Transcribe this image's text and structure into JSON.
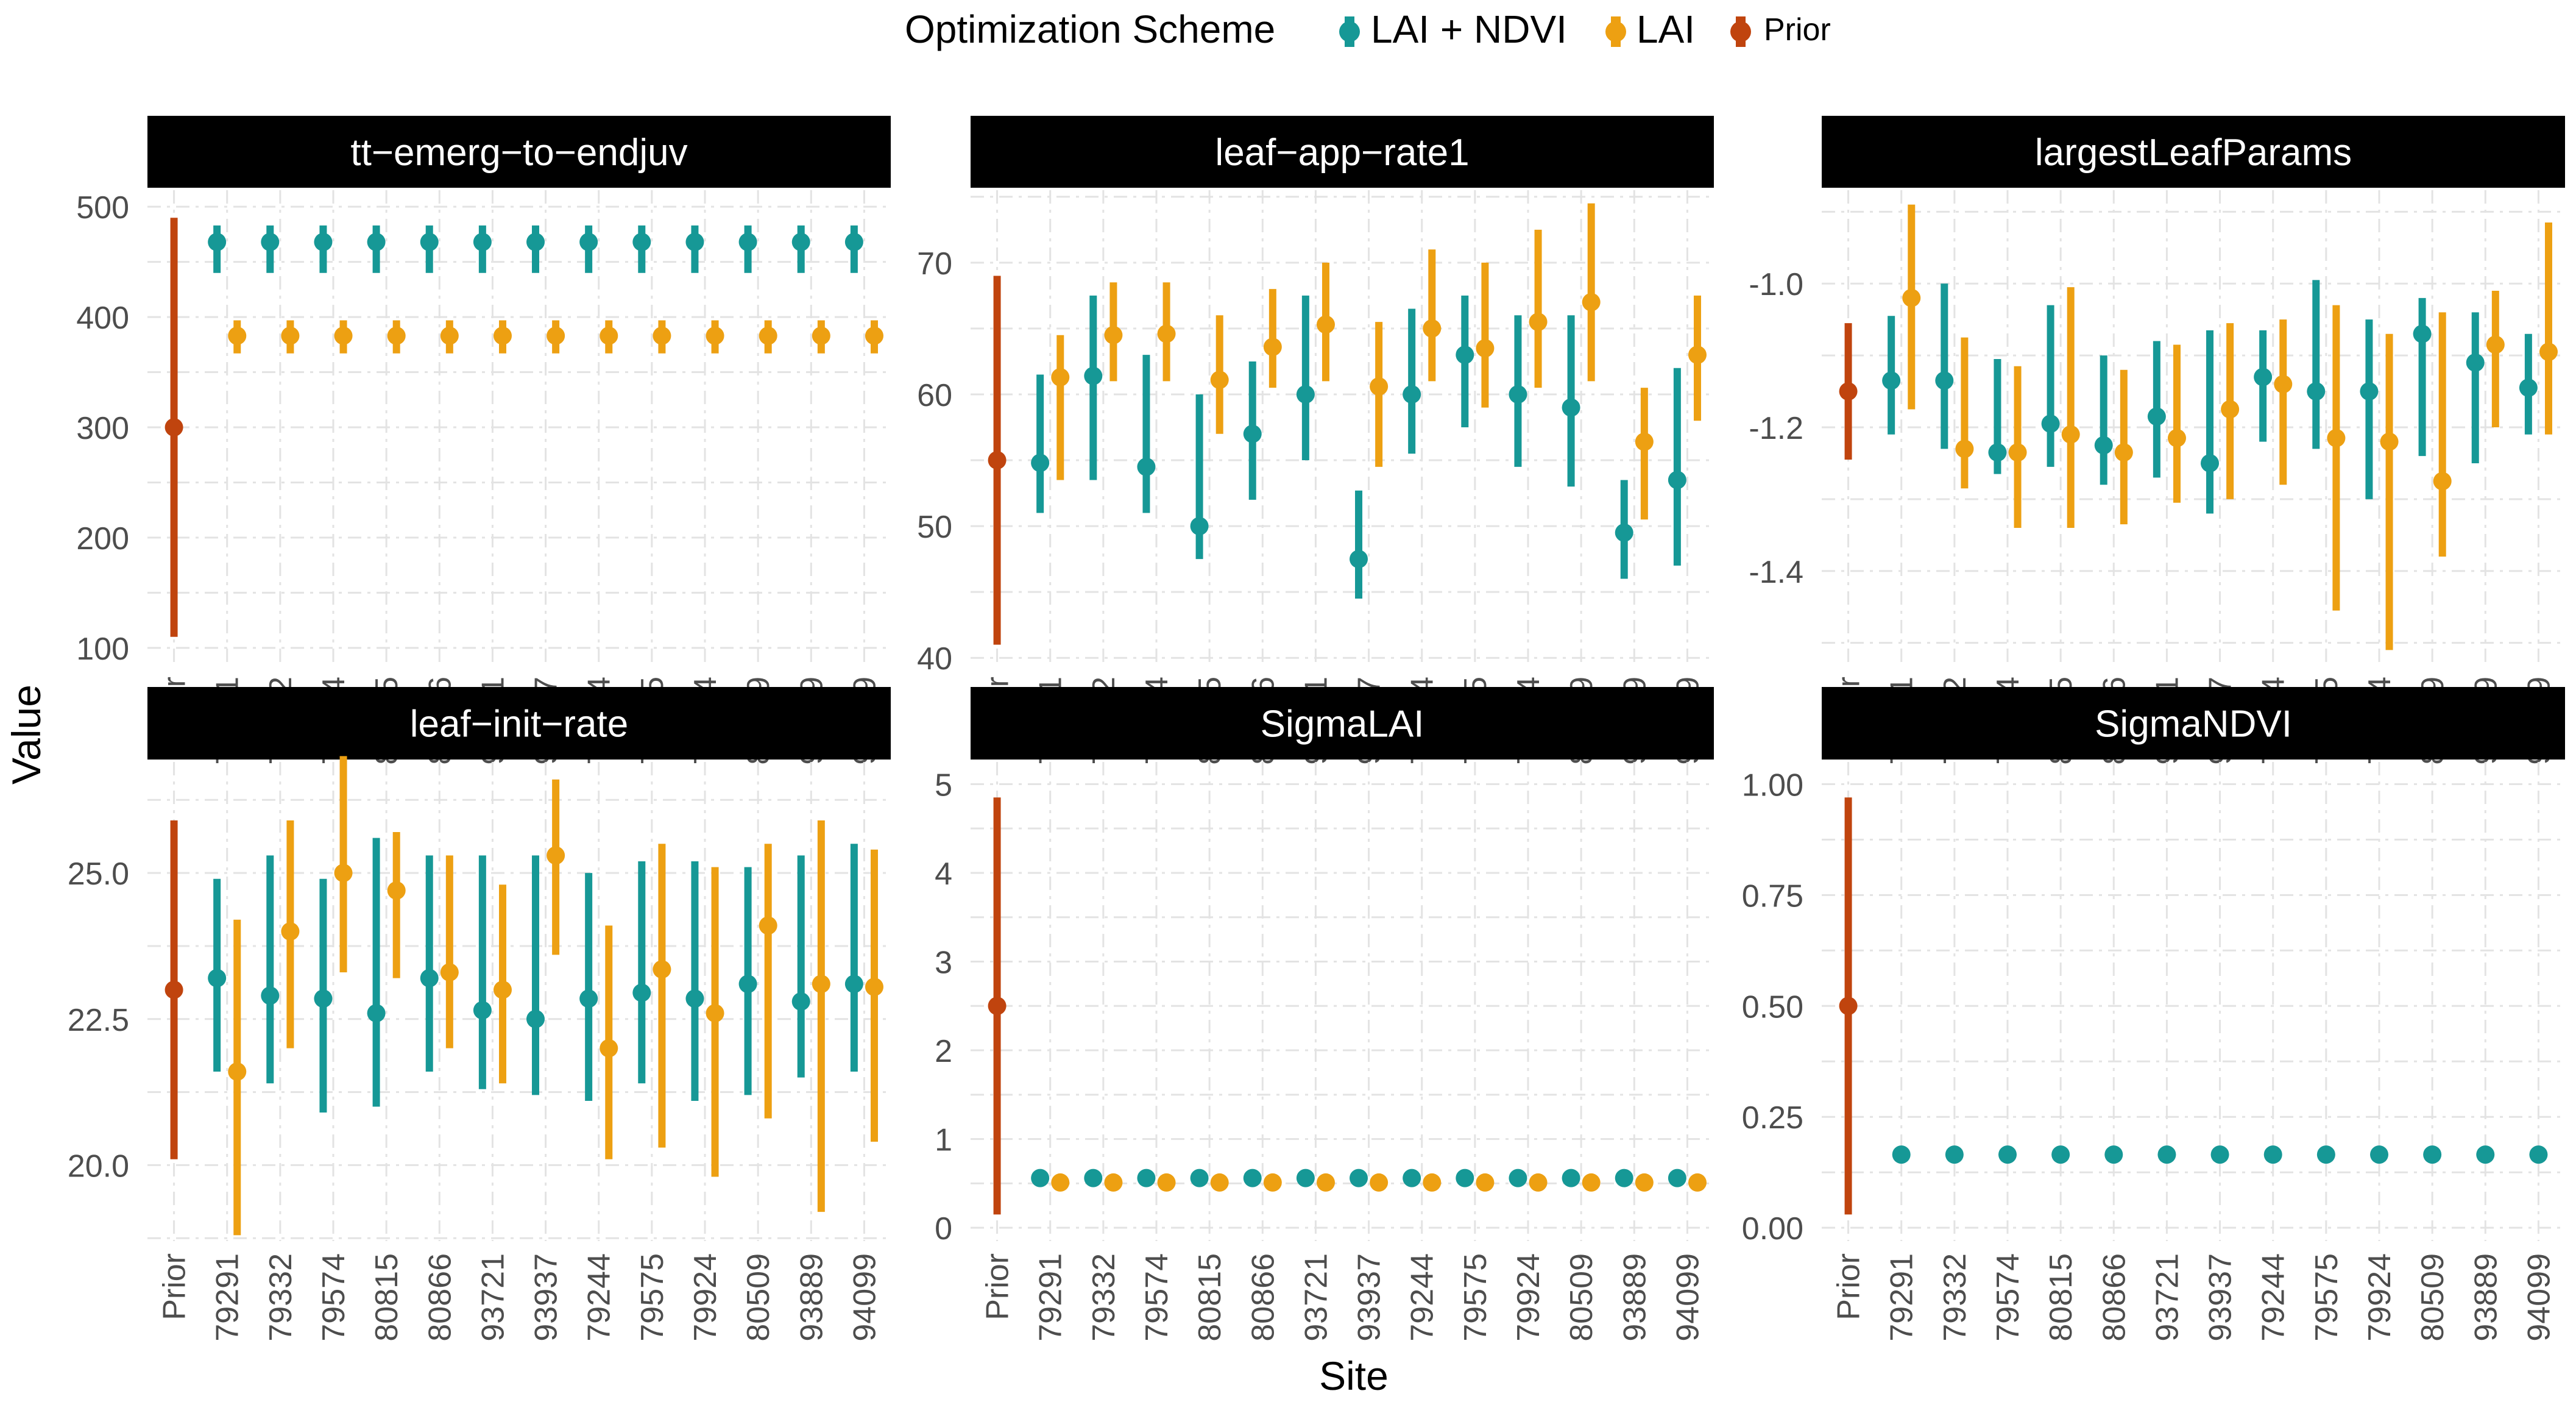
{
  "legend": {
    "title": "Optimization Scheme",
    "items": [
      {
        "name": "LAI + NDVI",
        "color": "#169896"
      },
      {
        "name": "LAI",
        "color": "#EDA012"
      },
      {
        "name": "Prior",
        "color": "#C0440E"
      }
    ]
  },
  "axis_titles": {
    "x": "Site",
    "y": "Value"
  },
  "chart_data": {
    "type": "scatter",
    "variant": "pointrange faceted",
    "sites": [
      "Prior",
      "79291",
      "79332",
      "79574",
      "80815",
      "80866",
      "93721",
      "93937",
      "79244",
      "79575",
      "79924",
      "80509",
      "93889",
      "94099"
    ],
    "panels": [
      {
        "title": "tt−emerg−to−endjuv",
        "ylim": [
          85,
          515
        ],
        "yticks": [
          100,
          200,
          300,
          400,
          500
        ],
        "ytick_labels": [
          "100",
          "200",
          "300",
          "400",
          "500"
        ],
        "prior": {
          "value": 300,
          "low": 110,
          "high": 490
        },
        "series": [
          {
            "name": "LAI + NDVI",
            "values": [
              468,
              468,
              468,
              468,
              468,
              468,
              468,
              468,
              468,
              468,
              468,
              468,
              468
            ],
            "low": [
              440,
              440,
              440,
              440,
              440,
              440,
              440,
              440,
              440,
              440,
              440,
              440,
              440
            ],
            "high": [
              483,
              483,
              483,
              483,
              483,
              483,
              483,
              483,
              483,
              483,
              483,
              483,
              483
            ]
          },
          {
            "name": "LAI",
            "values": [
              383,
              383,
              383,
              383,
              383,
              383,
              383,
              383,
              383,
              383,
              383,
              383,
              383
            ],
            "low": [
              367,
              367,
              367,
              367,
              367,
              367,
              367,
              367,
              367,
              367,
              367,
              367,
              367
            ],
            "high": [
              397,
              397,
              397,
              397,
              397,
              397,
              397,
              397,
              397,
              397,
              397,
              397,
              397
            ]
          }
        ]
      },
      {
        "title": "leaf−app−rate1",
        "ylim": [
          39.5,
          75.5
        ],
        "yticks": [
          40,
          50,
          60,
          70
        ],
        "ytick_labels": [
          "40",
          "50",
          "60",
          "70"
        ],
        "prior": {
          "value": 55,
          "low": 41,
          "high": 69
        },
        "series": [
          {
            "name": "LAI + NDVI",
            "values": [
              54.8,
              61.4,
              54.5,
              50.0,
              57.0,
              60.0,
              47.5,
              60.0,
              63.0,
              60.0,
              59.0,
              49.5,
              53.5
            ],
            "low": [
              51.0,
              53.5,
              51.0,
              47.5,
              52.0,
              55.0,
              44.5,
              55.5,
              57.5,
              54.5,
              53.0,
              46.0,
              47.0
            ],
            "high": [
              61.5,
              67.5,
              63.0,
              60.0,
              62.5,
              67.5,
              52.7,
              66.5,
              67.5,
              66.0,
              66.0,
              53.5,
              62.0
            ]
          },
          {
            "name": "LAI",
            "values": [
              61.3,
              64.5,
              64.6,
              61.1,
              63.6,
              65.3,
              60.6,
              65.0,
              63.5,
              65.5,
              67.0,
              56.4,
              63.0
            ],
            "low": [
              53.5,
              61.0,
              61.0,
              57.0,
              60.5,
              61.0,
              54.5,
              61.0,
              59.0,
              60.5,
              61.0,
              50.5,
              58.0
            ],
            "high": [
              64.5,
              68.5,
              68.5,
              66.0,
              68.0,
              70.0,
              65.5,
              71.0,
              70.0,
              72.5,
              74.5,
              60.5,
              67.5
            ]
          }
        ]
      },
      {
        "title": "largestLeafParams",
        "ylim": [
          -1.53,
          -0.87
        ],
        "yticks": [
          -1.4,
          -1.2,
          -1.0
        ],
        "ytick_labels": [
          "-1.4",
          "-1.2",
          "-1.0"
        ],
        "prior": {
          "value": -1.15,
          "low": -1.245,
          "high": -1.055
        },
        "series": [
          {
            "name": "LAI + NDVI",
            "values": [
              -1.135,
              -1.135,
              -1.235,
              -1.195,
              -1.225,
              -1.185,
              -1.25,
              -1.13,
              -1.15,
              -1.15,
              -1.07,
              -1.11,
              -1.145
            ],
            "low": [
              -1.21,
              -1.23,
              -1.265,
              -1.255,
              -1.28,
              -1.27,
              -1.32,
              -1.22,
              -1.23,
              -1.3,
              -1.24,
              -1.25,
              -1.21
            ],
            "high": [
              -1.045,
              -1.0,
              -1.105,
              -1.03,
              -1.1,
              -1.08,
              -1.065,
              -1.065,
              -0.995,
              -1.05,
              -1.02,
              -1.04,
              -1.07
            ]
          },
          {
            "name": "LAI",
            "values": [
              -1.02,
              -1.23,
              -1.235,
              -1.21,
              -1.235,
              -1.215,
              -1.175,
              -1.14,
              -1.215,
              -1.22,
              -1.275,
              -1.085,
              -1.095
            ],
            "low": [
              -1.175,
              -1.285,
              -1.34,
              -1.34,
              -1.335,
              -1.305,
              -1.3,
              -1.28,
              -1.455,
              -1.51,
              -1.38,
              -1.2,
              -1.21
            ],
            "high": [
              -0.89,
              -1.075,
              -1.115,
              -1.005,
              -1.12,
              -1.085,
              -1.055,
              -1.05,
              -1.03,
              -1.07,
              -1.04,
              -1.01,
              -0.915
            ]
          }
        ]
      },
      {
        "title": "leaf−init−rate",
        "ylim": [
          18.7,
          26.9
        ],
        "yticks": [
          20.0,
          22.5,
          25.0
        ],
        "ytick_labels": [
          "20.0",
          "22.5",
          "25.0"
        ],
        "prior": {
          "value": 23.0,
          "low": 20.1,
          "high": 25.9
        },
        "series": [
          {
            "name": "LAI + NDVI",
            "values": [
              23.2,
              22.9,
              22.85,
              22.6,
              23.2,
              22.65,
              22.5,
              22.85,
              22.95,
              22.85,
              23.1,
              22.8,
              23.1
            ],
            "low": [
              21.6,
              21.4,
              20.9,
              21.0,
              21.6,
              21.3,
              21.2,
              21.1,
              21.4,
              21.1,
              21.2,
              21.5,
              21.6
            ],
            "high": [
              24.9,
              25.3,
              24.9,
              25.6,
              25.3,
              25.3,
              25.3,
              25.0,
              25.2,
              25.2,
              25.1,
              25.3,
              25.5
            ]
          },
          {
            "name": "LAI",
            "values": [
              21.6,
              24.0,
              25.0,
              24.7,
              23.3,
              23.0,
              25.3,
              22.0,
              23.35,
              22.6,
              24.1,
              23.1,
              23.05
            ],
            "low": [
              18.8,
              22.0,
              23.3,
              23.2,
              22.0,
              21.4,
              23.6,
              20.1,
              20.3,
              19.8,
              20.8,
              19.2,
              20.4
            ],
            "high": [
              24.2,
              25.9,
              27.0,
              25.7,
              25.3,
              24.8,
              26.6,
              24.1,
              25.5,
              25.1,
              25.5,
              25.9,
              25.4
            ]
          }
        ]
      },
      {
        "title": "SigmaLAI",
        "ylim": [
          -0.15,
          5.25
        ],
        "yticks": [
          0,
          1,
          2,
          3,
          4,
          5
        ],
        "ytick_labels": [
          "0",
          "1",
          "2",
          "3",
          "4",
          "5"
        ],
        "prior": {
          "value": 2.5,
          "low": 0.15,
          "high": 4.85
        },
        "series": [
          {
            "name": "LAI + NDVI",
            "values": [
              0.56,
              0.56,
              0.56,
              0.56,
              0.56,
              0.56,
              0.56,
              0.56,
              0.56,
              0.56,
              0.56,
              0.56,
              0.56
            ],
            "low": [
              0.52,
              0.52,
              0.52,
              0.52,
              0.52,
              0.52,
              0.52,
              0.52,
              0.52,
              0.52,
              0.52,
              0.52,
              0.52
            ],
            "high": [
              0.6,
              0.6,
              0.6,
              0.6,
              0.6,
              0.6,
              0.6,
              0.6,
              0.6,
              0.6,
              0.6,
              0.6,
              0.6
            ]
          },
          {
            "name": "LAI",
            "values": [
              0.51,
              0.51,
              0.51,
              0.51,
              0.51,
              0.51,
              0.51,
              0.51,
              0.51,
              0.51,
              0.51,
              0.51,
              0.51
            ],
            "low": [
              0.47,
              0.47,
              0.47,
              0.47,
              0.47,
              0.47,
              0.47,
              0.47,
              0.47,
              0.47,
              0.47,
              0.47,
              0.47
            ],
            "high": [
              0.55,
              0.55,
              0.55,
              0.55,
              0.55,
              0.55,
              0.55,
              0.55,
              0.55,
              0.55,
              0.55,
              0.55,
              0.55
            ]
          }
        ]
      },
      {
        "title": "SigmaNDVI",
        "ylim": [
          -0.03,
          1.05
        ],
        "yticks": [
          0.0,
          0.25,
          0.5,
          0.75,
          1.0
        ],
        "ytick_labels": [
          "0.00",
          "0.25",
          "0.50",
          "0.75",
          "1.00"
        ],
        "prior": {
          "value": 0.5,
          "low": 0.03,
          "high": 0.97
        },
        "series": [
          {
            "name": "LAI + NDVI",
            "values": [
              0.165,
              0.165,
              0.165,
              0.165,
              0.165,
              0.165,
              0.165,
              0.165,
              0.165,
              0.165,
              0.165,
              0.165,
              0.165
            ],
            "low": [
              0.158,
              0.158,
              0.158,
              0.158,
              0.158,
              0.158,
              0.158,
              0.158,
              0.158,
              0.158,
              0.158,
              0.158,
              0.158
            ],
            "high": [
              0.172,
              0.172,
              0.172,
              0.172,
              0.172,
              0.172,
              0.172,
              0.172,
              0.172,
              0.172,
              0.172,
              0.172,
              0.172
            ]
          }
        ]
      }
    ]
  }
}
